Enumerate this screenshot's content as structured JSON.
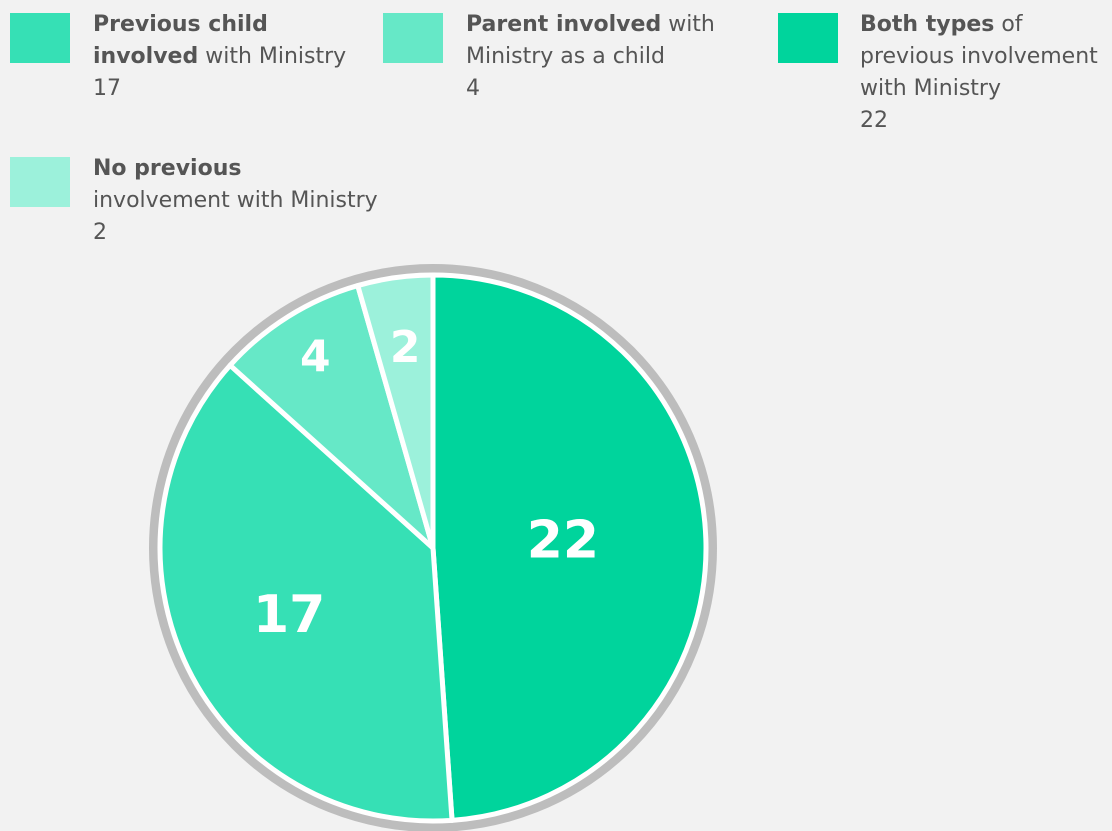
{
  "chart_data": {
    "type": "pie",
    "categories": [
      {
        "bold": "Both types",
        "rest": "of previous involvement with Ministry"
      },
      {
        "bold": "Previous child involved",
        "rest": "with Ministry"
      },
      {
        "bold": "Parent involved",
        "rest": "with Ministry as a child"
      },
      {
        "bold": "No previous",
        "rest": "involvement with Ministry"
      }
    ],
    "values": [
      22,
      17,
      4,
      2
    ],
    "colors": [
      "#00d49c",
      "#36e0b5",
      "#66e8c7",
      "#9cf1db"
    ]
  }
}
